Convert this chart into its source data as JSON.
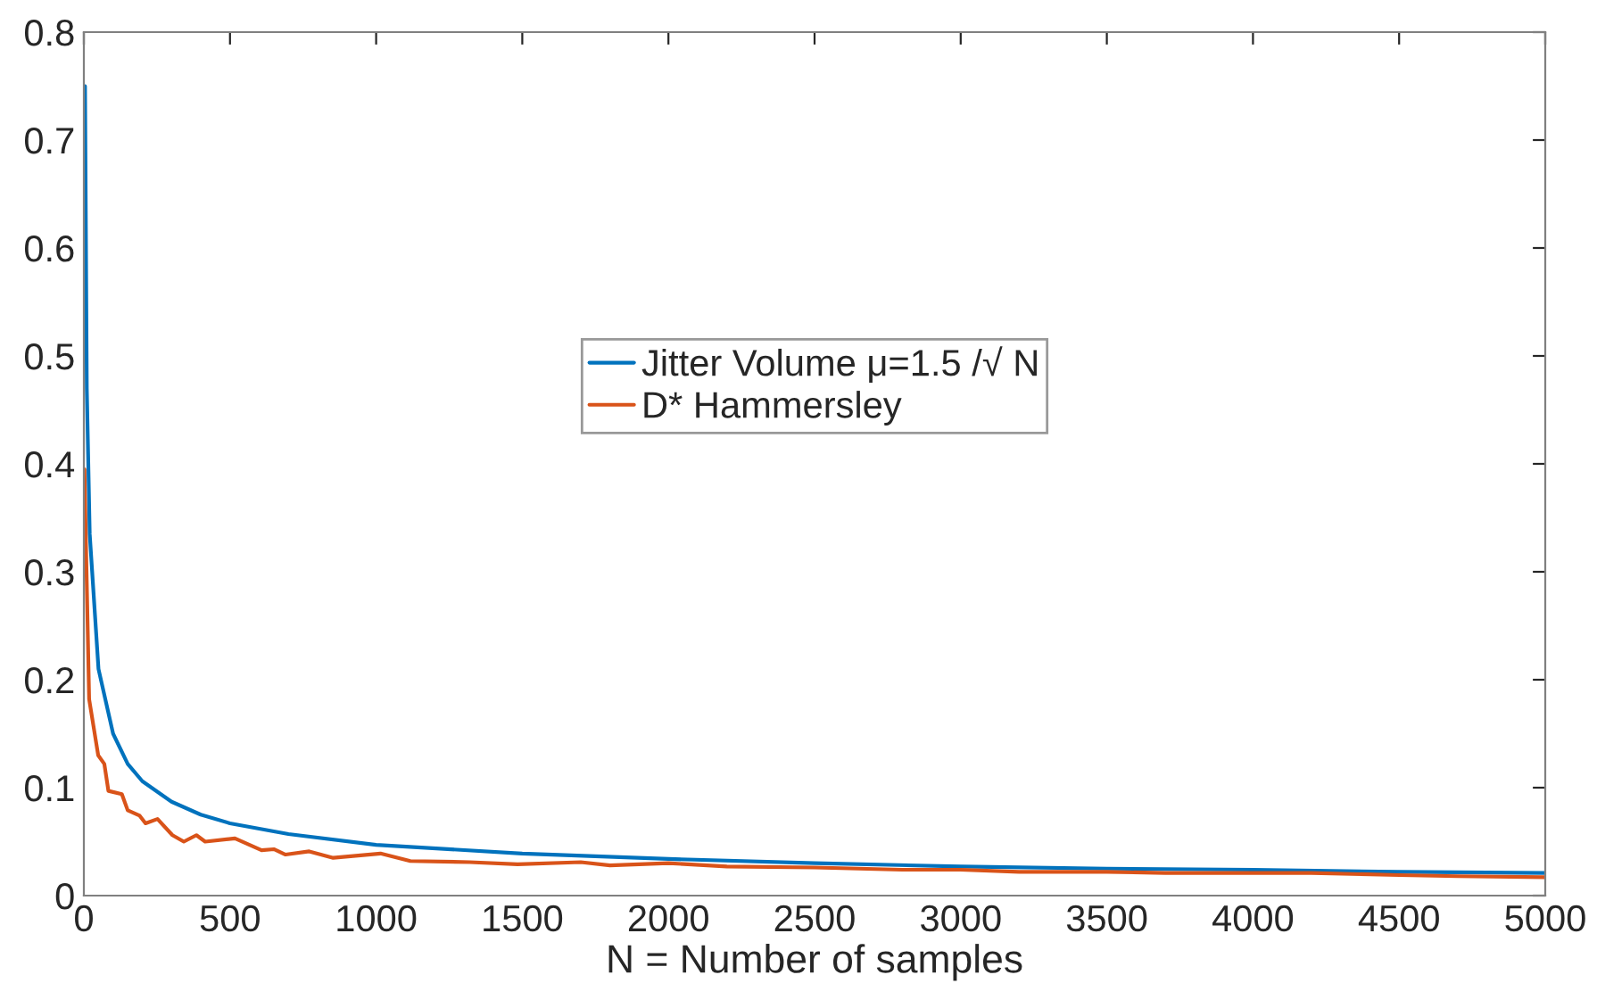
{
  "chart_data": {
    "type": "line",
    "xlabel": "N = Number of samples",
    "xlim": [
      0,
      5000
    ],
    "xticks": [
      0,
      500,
      1000,
      1500,
      2000,
      2500,
      3000,
      3500,
      4000,
      4500,
      5000
    ],
    "ylim": [
      0,
      0.8
    ],
    "yticks": [
      0,
      0.1,
      0.2,
      0.3,
      0.4,
      0.5,
      0.6,
      0.7,
      0.8
    ],
    "grid": false,
    "legend": "center",
    "line_style": "solid",
    "marker": "none",
    "series": [
      {
        "name": "Jitter Volume μ=1.5 /√ N",
        "color": "#0072bd",
        "x": [
          4,
          10,
          20,
          50,
          100,
          150,
          200,
          300,
          400,
          500,
          700,
          1000,
          1500,
          2000,
          2500,
          3000,
          3500,
          4000,
          4500,
          5000
        ],
        "values": [
          0.75,
          0.47,
          0.335,
          0.21,
          0.15,
          0.122,
          0.106,
          0.087,
          0.075,
          0.067,
          0.057,
          0.047,
          0.039,
          0.034,
          0.03,
          0.027,
          0.025,
          0.024,
          0.022,
          0.021
        ]
      },
      {
        "name": "D* Hammersley",
        "color": "#d95319",
        "x": [
          2,
          18,
          49,
          70,
          84,
          130,
          150,
          191,
          211,
          252,
          303,
          342,
          385,
          415,
          517,
          608,
          650,
          690,
          771,
          853,
          1015,
          1117,
          1320,
          1484,
          1700,
          1800,
          2000,
          2200,
          2500,
          2800,
          3000,
          3200,
          3500,
          3700,
          4000,
          4200,
          4500,
          4700,
          5000
        ],
        "values": [
          0.395,
          0.182,
          0.13,
          0.122,
          0.097,
          0.094,
          0.079,
          0.074,
          0.067,
          0.071,
          0.056,
          0.05,
          0.056,
          0.05,
          0.053,
          0.042,
          0.043,
          0.038,
          0.041,
          0.035,
          0.039,
          0.032,
          0.031,
          0.029,
          0.031,
          0.028,
          0.03,
          0.027,
          0.026,
          0.024,
          0.024,
          0.022,
          0.022,
          0.021,
          0.021,
          0.021,
          0.019,
          0.018,
          0.017
        ]
      }
    ]
  }
}
